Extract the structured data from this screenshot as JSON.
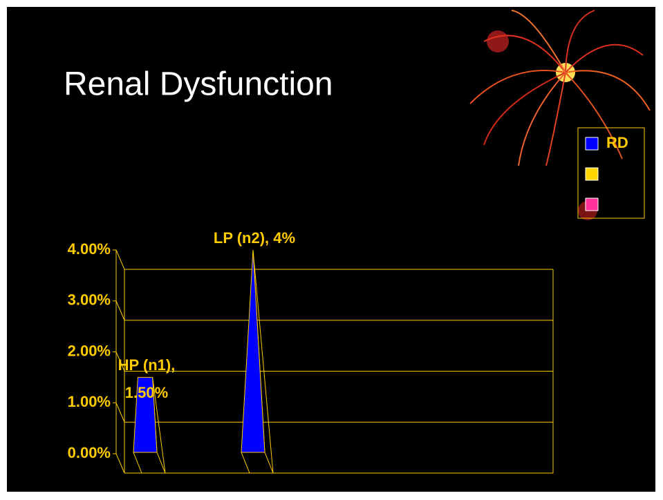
{
  "chart_data": {
    "type": "pyramid3d",
    "title": "Renal Dysfunction",
    "series": [
      {
        "name": "RD",
        "color": "#0000ff",
        "values": [
          1.5,
          4
        ],
        "value_labels": [
          "HP (n1), 1.50%",
          "LP (n2), 4%"
        ]
      },
      {
        "name": null,
        "color": "#ffd700",
        "values": [
          null,
          null
        ]
      },
      {
        "name": null,
        "color": "#ff3399",
        "values": [
          null,
          null
        ]
      }
    ],
    "ylim": [
      0,
      4
    ],
    "yticks": [
      {
        "value": 0,
        "label": "0.00%"
      },
      {
        "value": 1,
        "label": "1.00%"
      },
      {
        "value": 2,
        "label": "2.00%"
      },
      {
        "value": 3,
        "label": "3.00%"
      },
      {
        "value": 4,
        "label": "4.00%"
      }
    ],
    "grid": true
  }
}
